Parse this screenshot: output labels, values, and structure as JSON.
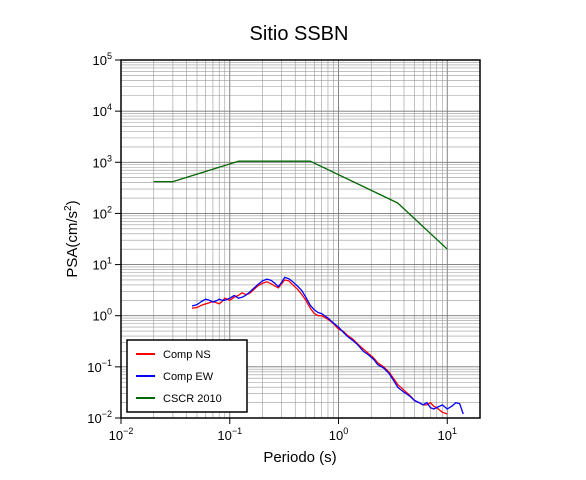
{
  "chart_data": {
    "type": "line",
    "title": "Sitio SSBN",
    "xlabel": "Periodo (s)",
    "ylabel_prefix": "PSA(cm/s",
    "ylabel_exp": "2",
    "ylabel_suffix": ")",
    "x_scale": "log",
    "y_scale": "log",
    "xlim": [
      0.01,
      20
    ],
    "ylim": [
      0.01,
      100000
    ],
    "grid": true,
    "x_ticks": [
      {
        "value": 0.01,
        "base": "10",
        "exp": "−2"
      },
      {
        "value": 0.1,
        "base": "10",
        "exp": "−1"
      },
      {
        "value": 1,
        "base": "10",
        "exp": "0"
      },
      {
        "value": 10,
        "base": "10",
        "exp": "1"
      }
    ],
    "y_ticks": [
      {
        "value": 0.01,
        "base": "10",
        "exp": "−2"
      },
      {
        "value": 0.1,
        "base": "10",
        "exp": "−1"
      },
      {
        "value": 1,
        "base": "10",
        "exp": "0"
      },
      {
        "value": 10,
        "base": "10",
        "exp": "1"
      },
      {
        "value": 100,
        "base": "10",
        "exp": "2"
      },
      {
        "value": 1000,
        "base": "10",
        "exp": "3"
      },
      {
        "value": 10000,
        "base": "10",
        "exp": "4"
      },
      {
        "value": 100000,
        "base": "10",
        "exp": "5"
      }
    ],
    "legend_position": "bottom-left",
    "series": [
      {
        "name": "Comp NS",
        "color": "#ff0000",
        "x": [
          0.045,
          0.05,
          0.055,
          0.06,
          0.065,
          0.07,
          0.075,
          0.08,
          0.085,
          0.09,
          0.1,
          0.11,
          0.12,
          0.13,
          0.14,
          0.15,
          0.16,
          0.18,
          0.2,
          0.22,
          0.24,
          0.26,
          0.28,
          0.3,
          0.32,
          0.35,
          0.38,
          0.42,
          0.46,
          0.5,
          0.55,
          0.6,
          0.65,
          0.7,
          0.8,
          0.9,
          1.0,
          1.1,
          1.2,
          1.35,
          1.5,
          1.7,
          1.9,
          2.1,
          2.3,
          2.6,
          2.9,
          3.2,
          3.5,
          4.0,
          4.5,
          5.0,
          5.5,
          6.0,
          6.5,
          7.0,
          7.5,
          8.0,
          9.0,
          10.0
        ],
        "values": [
          1.4,
          1.45,
          1.6,
          1.7,
          1.8,
          1.9,
          1.8,
          1.7,
          1.9,
          2.2,
          2.0,
          2.3,
          2.5,
          2.8,
          2.6,
          2.7,
          3.0,
          3.8,
          4.3,
          4.6,
          4.2,
          3.8,
          3.5,
          4.2,
          5.0,
          4.8,
          4.0,
          3.3,
          2.6,
          2.0,
          1.4,
          1.1,
          1.0,
          1.0,
          0.85,
          0.7,
          0.55,
          0.5,
          0.42,
          0.35,
          0.28,
          0.22,
          0.18,
          0.15,
          0.12,
          0.1,
          0.08,
          0.06,
          0.045,
          0.035,
          0.028,
          0.022,
          0.02,
          0.018,
          0.018,
          0.02,
          0.017,
          0.016,
          0.013,
          0.012
        ]
      },
      {
        "name": "Comp EW",
        "color": "#0000ff",
        "x": [
          0.045,
          0.05,
          0.055,
          0.06,
          0.065,
          0.07,
          0.075,
          0.08,
          0.085,
          0.09,
          0.1,
          0.11,
          0.12,
          0.13,
          0.14,
          0.15,
          0.16,
          0.18,
          0.2,
          0.22,
          0.24,
          0.26,
          0.28,
          0.3,
          0.32,
          0.35,
          0.38,
          0.42,
          0.46,
          0.5,
          0.55,
          0.6,
          0.65,
          0.7,
          0.8,
          0.9,
          1.0,
          1.1,
          1.2,
          1.35,
          1.5,
          1.7,
          1.9,
          2.1,
          2.3,
          2.6,
          2.9,
          3.2,
          3.5,
          4.0,
          4.5,
          5.0,
          5.5,
          6.0,
          6.5,
          7.0,
          7.5,
          8.0,
          9.0,
          10.0,
          11.0,
          12.0,
          13.0,
          14.0
        ],
        "values": [
          1.55,
          1.65,
          1.9,
          2.1,
          2.0,
          1.85,
          1.95,
          2.1,
          2.0,
          2.0,
          2.2,
          2.5,
          2.2,
          2.3,
          2.5,
          2.8,
          3.2,
          4.0,
          4.8,
          5.2,
          4.9,
          4.3,
          3.7,
          4.5,
          5.6,
          5.3,
          4.6,
          3.8,
          3.1,
          2.3,
          1.6,
          1.3,
          1.15,
          1.1,
          0.9,
          0.72,
          0.6,
          0.48,
          0.4,
          0.33,
          0.27,
          0.2,
          0.17,
          0.14,
          0.11,
          0.095,
          0.075,
          0.055,
          0.04,
          0.032,
          0.027,
          0.022,
          0.02,
          0.018,
          0.02,
          0.016,
          0.015,
          0.016,
          0.018,
          0.015,
          0.017,
          0.02,
          0.019,
          0.012
        ]
      },
      {
        "name": "CSCR 2010",
        "color": "#006600",
        "x": [
          0.02,
          0.03,
          0.12,
          0.55,
          3.5,
          10.0
        ],
        "values": [
          420,
          420,
          1050,
          1050,
          160,
          20
        ]
      }
    ]
  }
}
